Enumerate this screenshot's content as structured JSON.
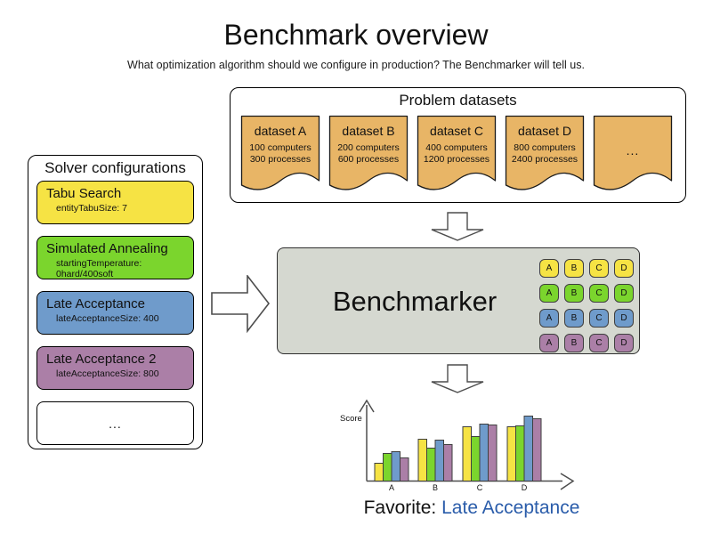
{
  "title": "Benchmark overview",
  "subtitle": "What optimization algorithm should we configure in production? The Benchmarker will tell us.",
  "problem_datasets": {
    "title": "Problem datasets",
    "card_color": "#e8b566",
    "more_label": "...",
    "datasets": [
      {
        "name": "dataset A",
        "line1": "100 computers",
        "line2": "300 processes"
      },
      {
        "name": "dataset B",
        "line1": "200 computers",
        "line2": "600 processes"
      },
      {
        "name": "dataset C",
        "line1": "400 computers",
        "line2": "1200 processes"
      },
      {
        "name": "dataset D",
        "line1": "800 computers",
        "line2": "2400 processes"
      }
    ]
  },
  "solver_configurations": {
    "title": "Solver configurations",
    "more_label": "...",
    "solvers": [
      {
        "name": "Tabu Search",
        "param": "entityTabuSize: 7",
        "color": "#f6e344"
      },
      {
        "name": "Simulated Annealing",
        "param": "startingTemperature: 0hard/400soft",
        "color": "#7bd52d"
      },
      {
        "name": "Late Acceptance",
        "param": "lateAcceptanceSize: 400",
        "color": "#6f9bcb"
      },
      {
        "name": "Late Acceptance 2",
        "param": "lateAcceptanceSize: 800",
        "color": "#ab7fa7"
      }
    ]
  },
  "benchmarker": {
    "label": "Benchmarker",
    "box_color": "#d5d8d0",
    "grid": {
      "columns": [
        "A",
        "B",
        "C",
        "D"
      ],
      "row_colors": [
        "#f6e344",
        "#7bd52d",
        "#6f9bcb",
        "#ab7fa7"
      ]
    }
  },
  "chart_data": {
    "type": "bar",
    "title": "",
    "xlabel": "",
    "ylabel": "Score",
    "categories": [
      "A",
      "B",
      "C",
      "D"
    ],
    "series": [
      {
        "name": "Tabu Search",
        "color": "#f6e344",
        "values": [
          20,
          47,
          61,
          61
        ]
      },
      {
        "name": "Simulated Annealing",
        "color": "#7bd52d",
        "values": [
          31,
          37,
          50,
          62
        ]
      },
      {
        "name": "Late Acceptance",
        "color": "#6f9bcb",
        "values": [
          33,
          46,
          64,
          73
        ]
      },
      {
        "name": "Late Acceptance 2",
        "color": "#ab7fa7",
        "values": [
          26,
          41,
          63,
          70
        ]
      }
    ],
    "ylim": [
      0,
      80
    ],
    "grid": false,
    "legend": false,
    "note": "unlabeled relative score axis; values are relative bar heights"
  },
  "favorite": {
    "label": "Favorite:",
    "value": "Late Acceptance",
    "value_color": "#2a5caa"
  }
}
